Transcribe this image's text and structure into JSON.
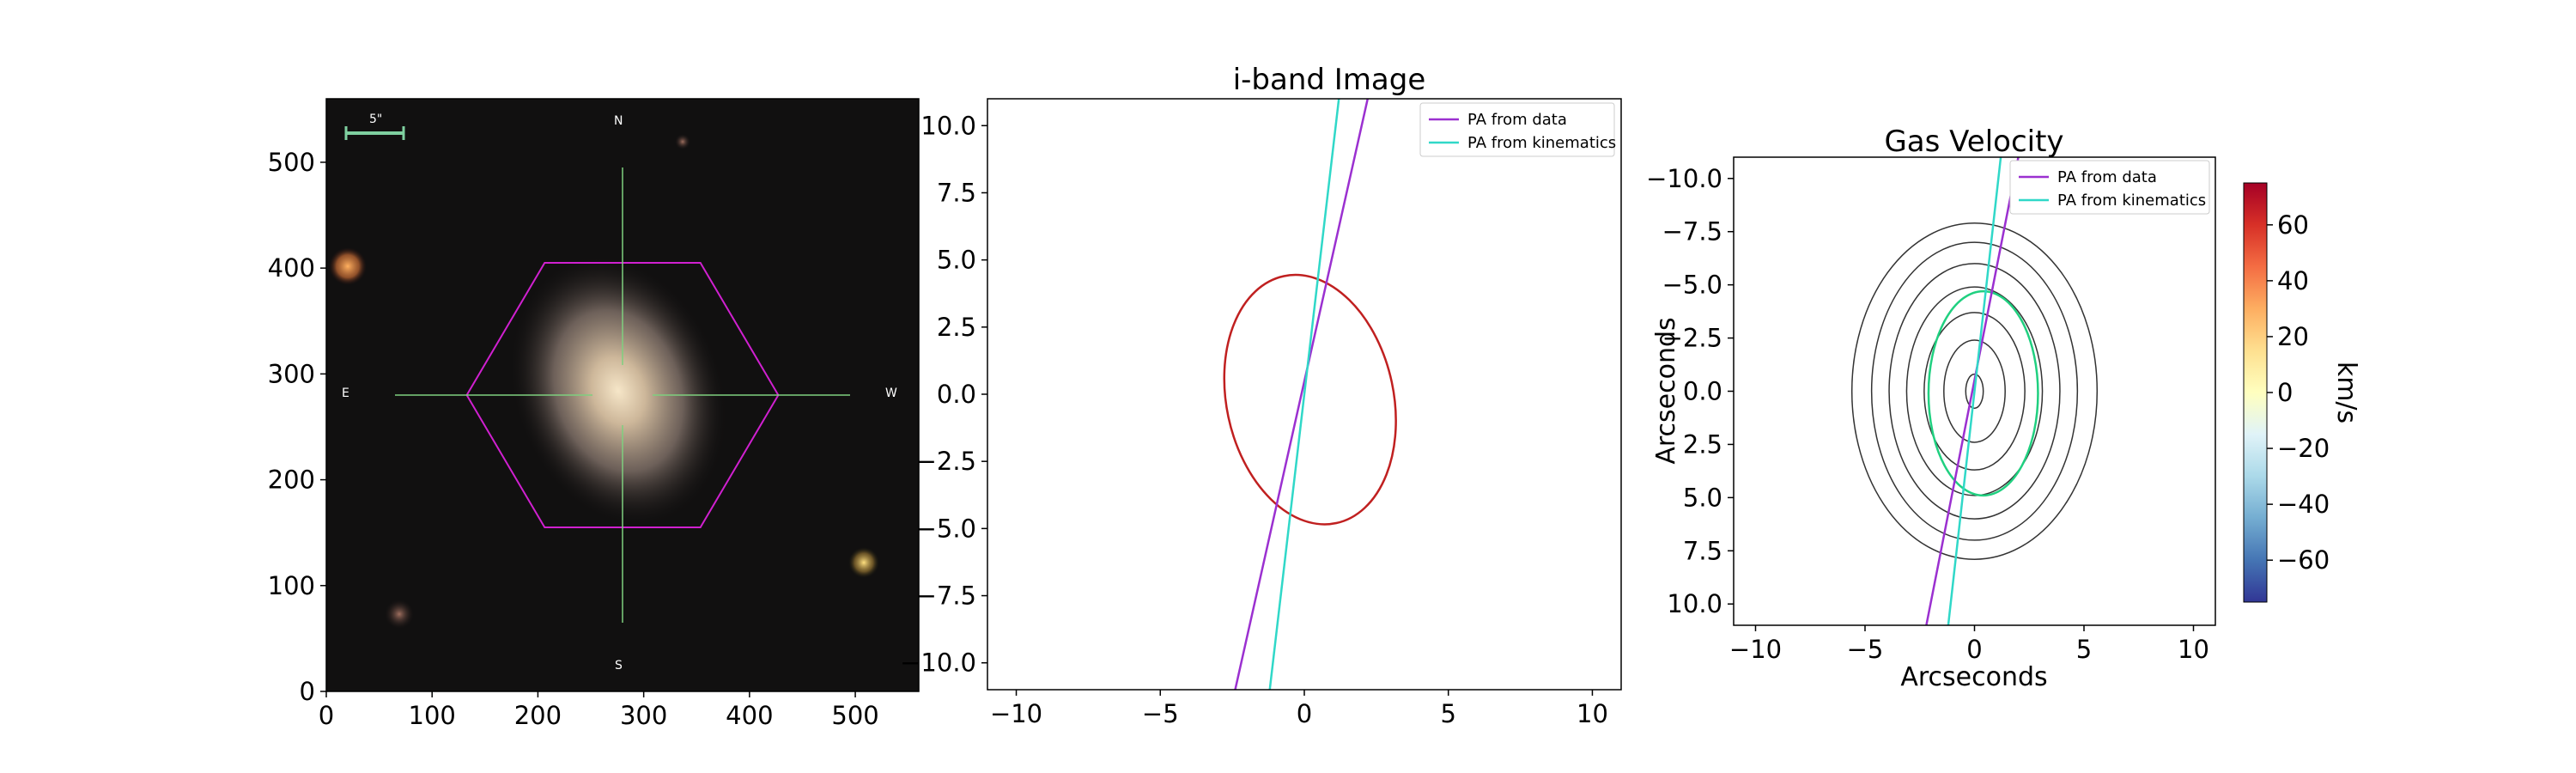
{
  "chart_data": [
    {
      "type": "image",
      "panel": "sdss-image",
      "title": "",
      "xlabel": "",
      "ylabel": "",
      "xlim": [
        0,
        560
      ],
      "ylim": [
        560,
        0
      ],
      "xticks": [
        0,
        100,
        200,
        300,
        400,
        500
      ],
      "yticks": [
        0,
        100,
        200,
        300,
        400,
        500
      ],
      "annotations": {
        "scale_bar": "5\"",
        "north": "N",
        "south": "S",
        "east": "E",
        "west": "W"
      },
      "center": [
        280,
        280
      ],
      "hexagon_radius": 95,
      "colors": {
        "hexagon": "#d020d0",
        "crosshair": "#7fcf7f",
        "scale_bar": "#7fd0a0"
      }
    },
    {
      "type": "heatmap",
      "panel": "i-band",
      "title": "i-band Image",
      "xlabel": "",
      "ylabel": "",
      "xlim": [
        -11,
        11
      ],
      "ylim": [
        11,
        -11
      ],
      "xticks": [
        -10,
        -5,
        0,
        5,
        10
      ],
      "yticks": [
        -10.0,
        -7.5,
        -5.0,
        -2.5,
        0.0,
        2.5,
        5.0,
        7.5,
        10.0
      ],
      "colormap": "viridis",
      "series": [
        {
          "name": "PA from data",
          "color": "#9b30d0",
          "points": [
            [
              -2.4,
              -11
            ],
            [
              2.2,
              11
            ]
          ]
        },
        {
          "name": "PA from kinematics",
          "color": "#30d8c8",
          "points": [
            [
              -1.2,
              -11
            ],
            [
              1.2,
              11
            ]
          ]
        }
      ],
      "ellipse": {
        "center": [
          0.2,
          -0.2
        ],
        "semi_major": 4.7,
        "semi_minor": 2.9,
        "angle_deg": -12,
        "color": "#c02020"
      },
      "legend": "top-right"
    },
    {
      "type": "heatmap",
      "panel": "gas-velocity",
      "title": "Gas Velocity",
      "xlabel": "Arcseconds",
      "ylabel": "Arcseconds",
      "xlim": [
        -11,
        11
      ],
      "ylim": [
        -11,
        11
      ],
      "xticks": [
        -10,
        -5,
        0,
        5,
        10
      ],
      "yticks": [
        10.0,
        7.5,
        5.0,
        2.5,
        0.0,
        -2.5,
        -5.0,
        -7.5,
        -10.0
      ],
      "colormap": "RdYlBu_r",
      "colorbar": {
        "label": "km/s",
        "range": [
          -75,
          75
        ],
        "ticks": [
          60,
          40,
          20,
          0,
          -20,
          -40,
          -60
        ]
      },
      "series": [
        {
          "name": "PA from data",
          "color": "#9b30d0",
          "points": [
            [
              -2.2,
              11
            ],
            [
              2.0,
              -11
            ]
          ]
        },
        {
          "name": "PA from kinematics",
          "color": "#30d8c8",
          "points": [
            [
              -1.2,
              11
            ],
            [
              1.2,
              -11
            ]
          ]
        }
      ],
      "legend": "top-right"
    }
  ]
}
